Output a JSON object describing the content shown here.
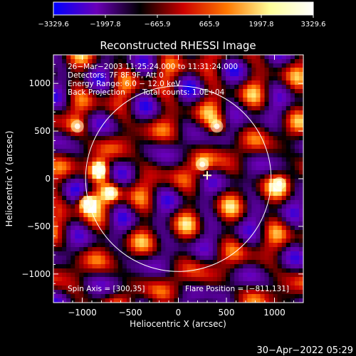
{
  "chart_data": {
    "type": "heatmap",
    "title": "Reconstructed RHESSI Image",
    "xlabel": "Heliocentric X (arcsec)",
    "ylabel": "Heliocentric Y (arcsec)",
    "xlim": [
      -1300,
      1300
    ],
    "ylim": [
      -1300,
      1300
    ],
    "x_ticks": [
      -1000,
      -500,
      0,
      500,
      1000
    ],
    "x_tick_labels": [
      "−1000",
      "−500",
      "0",
      "500",
      "1000"
    ],
    "y_ticks": [
      1000,
      500,
      0,
      -500,
      -1000
    ],
    "y_tick_labels": [
      "1000",
      "500",
      "0",
      "−500",
      "−1000"
    ],
    "colorbar": {
      "range": [
        -3329.6,
        3329.6
      ],
      "ticks": [
        -3329.6,
        -1997.8,
        -665.9,
        665.9,
        1997.8,
        3329.6
      ],
      "tick_labels": [
        "−3329.6",
        "−1997.8",
        "−665.9",
        "665.9",
        "1997.8",
        "3329.6"
      ],
      "colors": [
        "#0000ff",
        "#6a00b8",
        "#000000",
        "#cc0000",
        "#ff7700",
        "#ffff99",
        "#ffffff"
      ]
    },
    "annotations": [
      "26−Mar−2003 11:25:24.000 to 11:31:24.000",
      "Detectors: 7F 8F 9F, Att 0",
      "Energy Range: 6.0 − 12.0 keV",
      "Back Projection",
      "Total counts: 1.0E+04"
    ],
    "footer_left": "Spin Axis = [300,35]",
    "footer_right": "Flare Position = [−811,131]",
    "solar_disk_radius_arcsec": 965,
    "flare_position": [
      -811,
      131
    ],
    "source_marker": [
      300,
      35
    ],
    "bright_sources": [
      {
        "x": -820,
        "y": 90,
        "value": 3300
      },
      {
        "x": -950,
        "y": -250,
        "value": 3300
      },
      {
        "x": -700,
        "y": -150,
        "value": 2000
      },
      {
        "x": 400,
        "y": 550,
        "value": 1500
      },
      {
        "x": 1050,
        "y": -50,
        "value": 1200
      },
      {
        "x": -1050,
        "y": 550,
        "value": 1100
      },
      {
        "x": 250,
        "y": 150,
        "value": 1400
      }
    ]
  },
  "timestamp": "30−Apr−2022 05:29",
  "colors": {
    "background": "#000000",
    "foreground": "#ffffff"
  }
}
